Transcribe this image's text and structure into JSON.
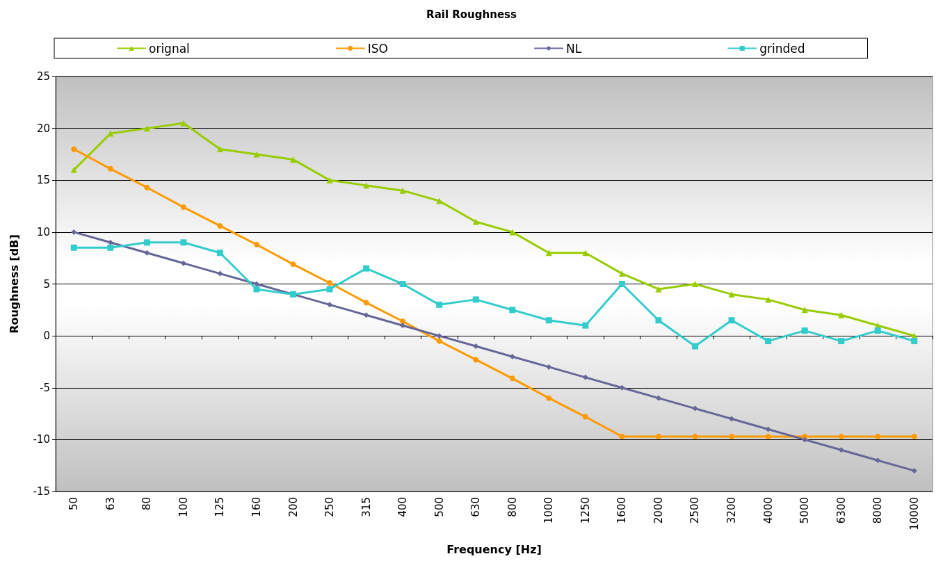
{
  "chart_data": {
    "type": "line",
    "title": "Rail Roughness",
    "xlabel": "Frequency [Hz]",
    "ylabel": "Roughness [dB]",
    "categories": [
      "50",
      "63",
      "80",
      "100",
      "125",
      "160",
      "200",
      "250",
      "315",
      "400",
      "500",
      "630",
      "800",
      "1000",
      "1250",
      "1600",
      "2000",
      "2500",
      "3200",
      "4000",
      "5000",
      "6300",
      "8000",
      "10000"
    ],
    "series": [
      {
        "name": "orignal",
        "color": "#99cc00",
        "marker": "triangle",
        "values": [
          16,
          19.5,
          20,
          20.5,
          18,
          17.5,
          17,
          15,
          14.5,
          14,
          13,
          11,
          10,
          8,
          8,
          6,
          4.5,
          5,
          4,
          3.5,
          2.5,
          2,
          1,
          0
        ]
      },
      {
        "name": "ISO",
        "color": "#ff9900",
        "marker": "circle",
        "values": [
          18,
          16.1,
          14.3,
          12.4,
          10.6,
          8.8,
          6.9,
          5.1,
          3.2,
          1.4,
          -0.5,
          -2.3,
          -4.1,
          -6,
          -7.8,
          -9.7,
          -9.7,
          -9.7,
          -9.7,
          -9.7,
          -9.7,
          -9.7,
          -9.7,
          -9.7
        ]
      },
      {
        "name": "NL",
        "color": "#666699",
        "marker": "diamond",
        "values": [
          10,
          9,
          8,
          7,
          6,
          5,
          4,
          3,
          2,
          1,
          0,
          -1,
          -2,
          -3,
          -4,
          -5,
          -6,
          -7,
          -8,
          -9,
          -10,
          -11,
          -12,
          -13
        ]
      },
      {
        "name": "grinded",
        "color": "#33cccc",
        "marker": "square",
        "values": [
          8.5,
          8.5,
          9,
          9,
          8,
          4.5,
          4,
          4.5,
          6.5,
          5,
          3,
          3.5,
          2.5,
          1.5,
          1,
          5,
          1.5,
          -1,
          1.5,
          -0.5,
          0.5,
          -0.5,
          0.5,
          -0.5
        ]
      }
    ],
    "ylim": [
      -15,
      25
    ],
    "yticks": [
      -15,
      -10,
      -5,
      0,
      5,
      10,
      15,
      20,
      25
    ],
    "grid": "y",
    "legend": "top",
    "line_style": "solid"
  }
}
